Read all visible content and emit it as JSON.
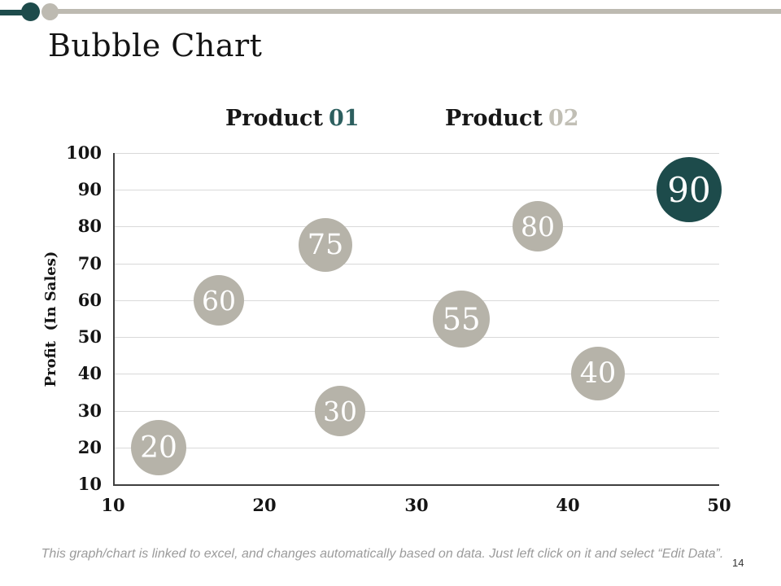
{
  "slide": {
    "title": "Bubble Chart",
    "page_number": "14",
    "footer_note": "This graph/chart is linked to excel, and changes automatically based on data. Just left click on it and select “Edit Data”."
  },
  "topbar": {
    "accent_color": "#1d4b4b",
    "line_color": "#bdbab1"
  },
  "colors": {
    "teal_bubble": "#1d4b4b",
    "gray_bubble": "#b6b3a9",
    "gridline": "#d9d9d9",
    "axis_line": "#3f3f3f",
    "footer_text": "#9b9b9b"
  },
  "legend": {
    "items": [
      {
        "prefix": "Product",
        "number": "01",
        "number_color": "#2d5f5f"
      },
      {
        "prefix": "Product",
        "number": "02",
        "number_color": "#c1bfb5"
      }
    ]
  },
  "chart_data": {
    "type": "scatter",
    "subtype": "bubble",
    "title": "",
    "xlabel": "",
    "ylabel": "Profit  (In Sales)",
    "xlim": [
      10,
      50
    ],
    "ylim": [
      10,
      100
    ],
    "x_ticks": [
      10,
      20,
      30,
      40,
      50
    ],
    "y_ticks": [
      10,
      20,
      30,
      40,
      50,
      60,
      70,
      80,
      90,
      100
    ],
    "grid": "horizontal",
    "legend_position": "top",
    "series": [
      {
        "name": "Product 01",
        "color": "#1d4b4b",
        "label_color": "#ffffff",
        "points": [
          {
            "x": 48,
            "y": 90,
            "label": "90",
            "r": 40
          }
        ]
      },
      {
        "name": "Product 02",
        "color": "#b6b3a9",
        "label_color": "#ffffff",
        "points": [
          {
            "x": 13,
            "y": 20,
            "label": "20",
            "r": 34
          },
          {
            "x": 17,
            "y": 60,
            "label": "60",
            "r": 31
          },
          {
            "x": 24,
            "y": 75,
            "label": "75",
            "r": 33
          },
          {
            "x": 25,
            "y": 30,
            "label": "30",
            "r": 31
          },
          {
            "x": 33,
            "y": 55,
            "label": "55",
            "r": 35
          },
          {
            "x": 38,
            "y": 80,
            "label": "80",
            "r": 31
          },
          {
            "x": 42,
            "y": 40,
            "label": "40",
            "r": 33
          }
        ]
      }
    ]
  }
}
